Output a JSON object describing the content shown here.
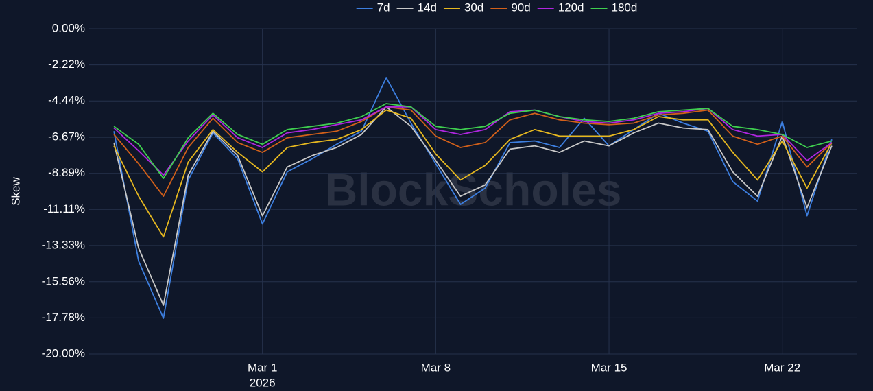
{
  "chart_data": {
    "type": "line",
    "y_label": "Skew",
    "watermark": "BlockScholes",
    "background": "#0f1729",
    "grid": true,
    "legend": "top",
    "x": [
      "2026-02-23",
      "2026-02-24",
      "2026-02-25",
      "2026-02-26",
      "2026-02-27",
      "2026-02-28",
      "2026-03-01",
      "2026-03-02",
      "2026-03-03",
      "2026-03-04",
      "2026-03-05",
      "2026-03-06",
      "2026-03-07",
      "2026-03-08",
      "2026-03-09",
      "2026-03-10",
      "2026-03-11",
      "2026-03-12",
      "2026-03-13",
      "2026-03-14",
      "2026-03-15",
      "2026-03-16",
      "2026-03-17",
      "2026-03-18",
      "2026-03-19",
      "2026-03-20",
      "2026-03-21",
      "2026-03-22",
      "2026-03-23",
      "2026-03-24"
    ],
    "xlim": [
      "2026-02-22",
      "2026-03-25"
    ],
    "xticks": [
      {
        "value": "2026-03-01",
        "label": "Mar 1",
        "sublabel": "2026"
      },
      {
        "value": "2026-03-08",
        "label": "Mar 8"
      },
      {
        "value": "2026-03-15",
        "label": "Mar 15"
      },
      {
        "value": "2026-03-22",
        "label": "Mar 22"
      }
    ],
    "ylim": [
      -20,
      0
    ],
    "yticks": [
      {
        "value": 0,
        "label": "0.00%"
      },
      {
        "value": -2.22,
        "label": "-2.22%"
      },
      {
        "value": -4.44,
        "label": "-4.44%"
      },
      {
        "value": -6.67,
        "label": "-6.67%"
      },
      {
        "value": -8.89,
        "label": "-8.89%"
      },
      {
        "value": -11.11,
        "label": "-11.11%"
      },
      {
        "value": -13.33,
        "label": "-13.33%"
      },
      {
        "value": -15.56,
        "label": "-15.56%"
      },
      {
        "value": -17.78,
        "label": "-17.78%"
      },
      {
        "value": -20,
        "label": "-20.00%"
      }
    ],
    "series": [
      {
        "name": "7d",
        "color": "#3d7fe0",
        "values": [
          -6.3,
          -14.3,
          -17.8,
          -9.3,
          -6.4,
          -8.0,
          -12.0,
          -8.8,
          -8.0,
          -7.1,
          -6.3,
          -3.0,
          -5.8,
          -8.3,
          -10.8,
          -9.8,
          -7.0,
          -6.9,
          -7.3,
          -5.5,
          -7.2,
          -6.2,
          -5.2,
          -5.8,
          -6.3,
          -9.4,
          -10.6,
          -5.7,
          -11.5,
          -6.8
        ]
      },
      {
        "name": "14d",
        "color": "#c8c8c8",
        "values": [
          -7.0,
          -13.5,
          -17.0,
          -9.0,
          -6.3,
          -7.8,
          -11.5,
          -8.5,
          -7.8,
          -7.3,
          -6.5,
          -4.8,
          -6.0,
          -8.1,
          -10.3,
          -9.6,
          -7.4,
          -7.2,
          -7.6,
          -6.9,
          -7.2,
          -6.4,
          -5.8,
          -6.1,
          -6.2,
          -8.8,
          -10.3,
          -6.6,
          -11.0,
          -7.2
        ]
      },
      {
        "name": "30d",
        "color": "#e6b820",
        "values": [
          -7.2,
          -10.3,
          -12.8,
          -8.2,
          -6.2,
          -7.6,
          -8.8,
          -7.3,
          -7.0,
          -6.8,
          -6.2,
          -5.0,
          -5.5,
          -7.7,
          -9.3,
          -8.4,
          -6.8,
          -6.2,
          -6.6,
          -6.6,
          -6.6,
          -6.2,
          -5.4,
          -5.6,
          -5.6,
          -7.6,
          -9.3,
          -6.9,
          -9.8,
          -7.0
        ]
      },
      {
        "name": "90d",
        "color": "#d2601a",
        "values": [
          -6.5,
          -8.3,
          -10.3,
          -7.3,
          -5.5,
          -7.0,
          -7.6,
          -6.7,
          -6.5,
          -6.3,
          -5.7,
          -4.8,
          -5.0,
          -6.6,
          -7.3,
          -7.0,
          -5.6,
          -5.2,
          -5.6,
          -5.8,
          -5.9,
          -5.8,
          -5.3,
          -5.2,
          -5.0,
          -6.6,
          -7.1,
          -6.6,
          -8.5,
          -7.0
        ]
      },
      {
        "name": "120d",
        "color": "#b026e0",
        "values": [
          -6.1,
          -7.5,
          -9.0,
          -6.9,
          -5.3,
          -6.7,
          -7.3,
          -6.4,
          -6.2,
          -5.9,
          -5.6,
          -4.8,
          -4.8,
          -6.2,
          -6.5,
          -6.2,
          -5.1,
          -5.0,
          -5.4,
          -5.7,
          -5.8,
          -5.6,
          -5.2,
          -5.1,
          -4.9,
          -6.2,
          -6.6,
          -6.5,
          -8.1,
          -7.0
        ]
      },
      {
        "name": "180d",
        "color": "#3fcf4f",
        "values": [
          -6.0,
          -7.1,
          -9.2,
          -6.7,
          -5.2,
          -6.5,
          -7.1,
          -6.2,
          -6.0,
          -5.8,
          -5.4,
          -4.6,
          -4.8,
          -6.0,
          -6.2,
          -6.0,
          -5.2,
          -5.0,
          -5.4,
          -5.6,
          -5.7,
          -5.5,
          -5.1,
          -5.0,
          -4.9,
          -6.0,
          -6.2,
          -6.5,
          -7.3,
          -6.9
        ]
      }
    ]
  }
}
